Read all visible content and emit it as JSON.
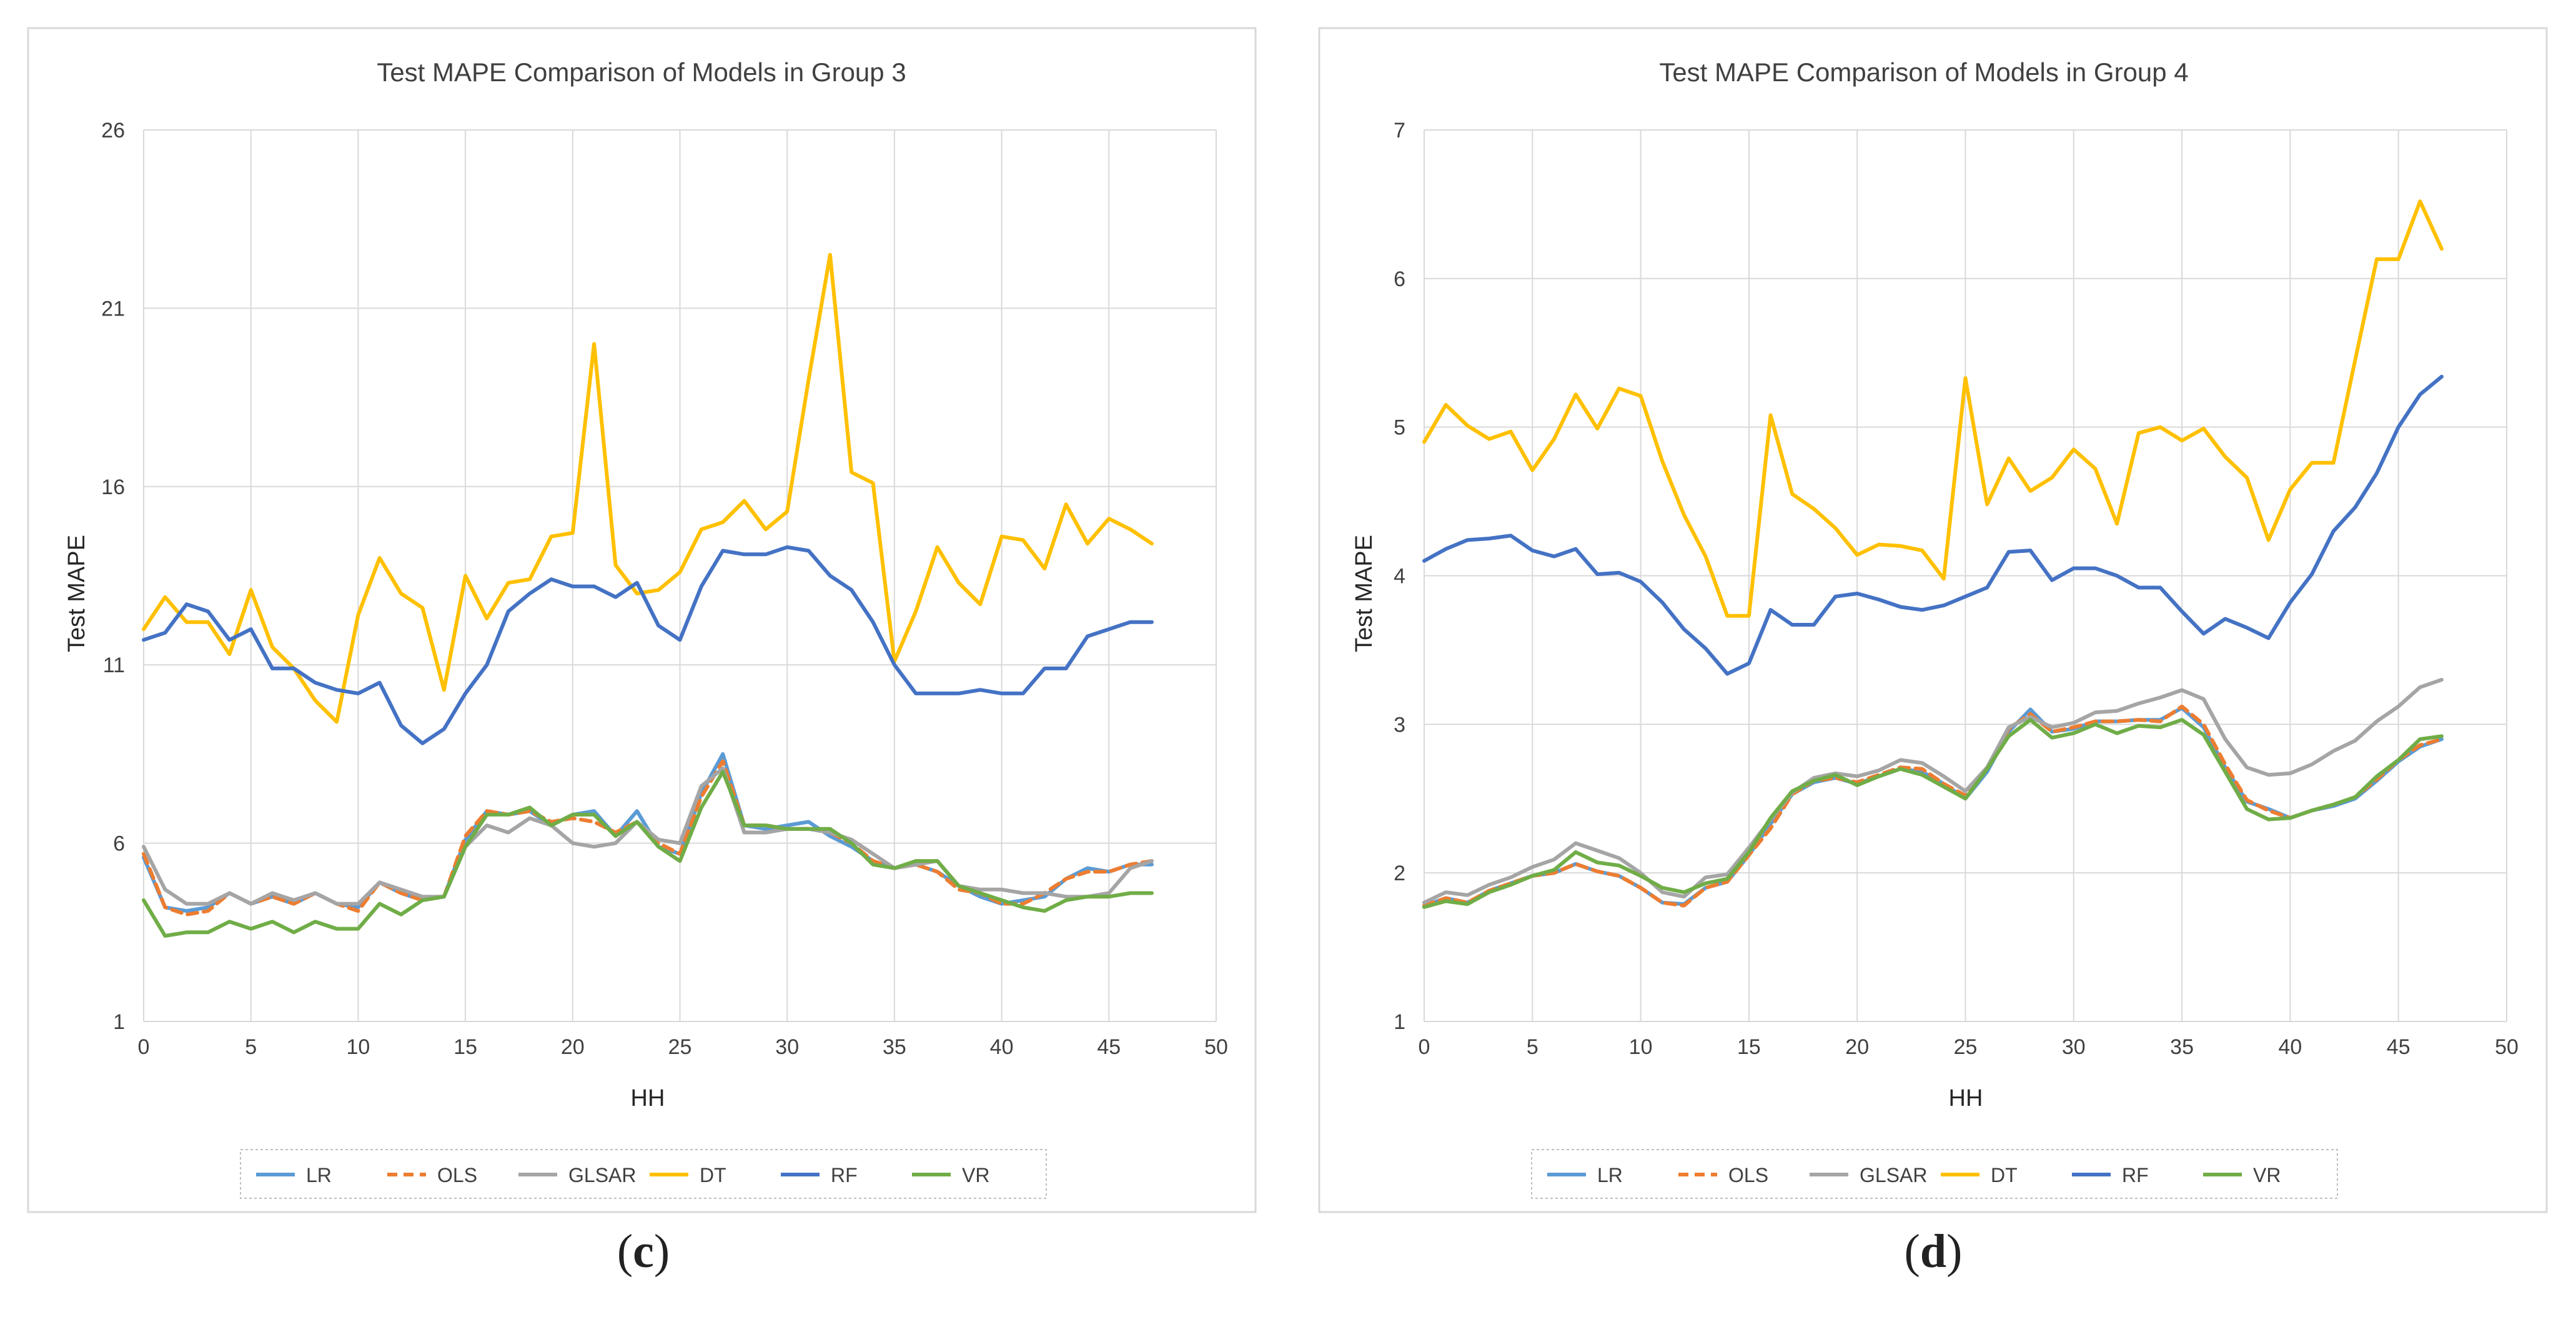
{
  "chart_data": [
    {
      "type": "line",
      "panel_label": "c",
      "title": "Test MAPE Comparison of Models in Group 3",
      "xlabel": "HH",
      "ylabel": "Test MAPE",
      "xlim": [
        0,
        50
      ],
      "ylim": [
        1,
        26
      ],
      "x_ticks": [
        0,
        5,
        10,
        15,
        20,
        25,
        30,
        35,
        40,
        45,
        50
      ],
      "y_ticks": [
        1,
        6,
        11,
        16,
        21,
        26
      ],
      "grid": "vertical and horizontal",
      "legend_position": "bottom",
      "x": [
        0,
        1,
        2,
        3,
        4,
        5,
        6,
        7,
        8,
        9,
        10,
        11,
        12,
        13,
        14,
        15,
        16,
        17,
        18,
        19,
        20,
        21,
        22,
        23,
        24,
        25,
        26,
        27,
        28,
        29,
        30,
        31,
        32,
        33,
        34,
        35,
        36,
        37,
        38,
        39,
        40,
        41,
        42,
        43,
        44,
        45,
        46,
        47
      ],
      "series": [
        {
          "name": "LR",
          "color": "#5B9BD5",
          "dash": "solid",
          "values": [
            5.6,
            4.2,
            4.1,
            4.2,
            4.6,
            4.3,
            4.5,
            4.3,
            4.6,
            4.3,
            4.2,
            4.9,
            4.6,
            4.4,
            4.5,
            6.1,
            6.9,
            6.8,
            6.9,
            6.5,
            6.8,
            6.9,
            6.2,
            6.9,
            5.9,
            5.7,
            7.4,
            8.5,
            6.5,
            6.4,
            6.5,
            6.6,
            6.2,
            5.9,
            5.5,
            5.3,
            5.4,
            5.2,
            4.8,
            4.5,
            4.3,
            4.4,
            4.5,
            5.0,
            5.3,
            5.2,
            5.4,
            5.4
          ]
        },
        {
          "name": "OLS",
          "color": "#ED7D31",
          "dash": "dashed",
          "values": [
            5.7,
            4.2,
            4.0,
            4.1,
            4.6,
            4.3,
            4.5,
            4.3,
            4.6,
            4.3,
            4.1,
            4.9,
            4.6,
            4.4,
            4.5,
            6.2,
            6.9,
            6.8,
            6.9,
            6.6,
            6.7,
            6.6,
            6.3,
            6.6,
            6.0,
            5.7,
            7.3,
            8.3,
            6.5,
            6.5,
            6.4,
            6.4,
            6.3,
            6.0,
            5.5,
            5.3,
            5.4,
            5.2,
            4.7,
            4.6,
            4.3,
            4.3,
            4.6,
            5.0,
            5.2,
            5.2,
            5.4,
            5.5
          ]
        },
        {
          "name": "GLSAR",
          "color": "#A5A5A5",
          "dash": "solid",
          "values": [
            5.9,
            4.7,
            4.3,
            4.3,
            4.6,
            4.3,
            4.6,
            4.4,
            4.6,
            4.3,
            4.3,
            4.9,
            4.7,
            4.5,
            4.5,
            5.9,
            6.5,
            6.3,
            6.7,
            6.5,
            6.0,
            5.9,
            6.0,
            6.6,
            6.1,
            6.0,
            7.6,
            8.1,
            6.3,
            6.3,
            6.4,
            6.4,
            6.3,
            6.1,
            5.7,
            5.3,
            5.4,
            5.5,
            4.8,
            4.7,
            4.7,
            4.6,
            4.6,
            4.5,
            4.5,
            4.6,
            5.3,
            5.5
          ]
        },
        {
          "name": "DT",
          "color": "#FFC000",
          "dash": "solid",
          "values": [
            12.0,
            12.9,
            12.2,
            12.2,
            11.3,
            13.1,
            11.5,
            10.9,
            10.0,
            9.4,
            12.4,
            14.0,
            13.0,
            12.6,
            10.3,
            13.5,
            12.3,
            13.3,
            13.4,
            14.6,
            14.7,
            20.0,
            13.8,
            13.0,
            13.1,
            13.6,
            14.8,
            15.0,
            15.6,
            14.8,
            15.3,
            19.0,
            22.5,
            16.4,
            16.1,
            11.1,
            12.5,
            14.3,
            13.3,
            12.7,
            14.6,
            14.5,
            13.7,
            15.5,
            14.4,
            15.1,
            14.8,
            14.4
          ]
        },
        {
          "name": "RF",
          "color": "#4472C4",
          "dash": "solid",
          "values": [
            11.7,
            11.9,
            12.7,
            12.5,
            11.7,
            12.0,
            10.9,
            10.9,
            10.5,
            10.3,
            10.2,
            10.5,
            9.3,
            8.8,
            9.2,
            10.2,
            11.0,
            12.5,
            13.0,
            13.4,
            13.2,
            13.2,
            12.9,
            13.3,
            12.1,
            11.7,
            13.2,
            14.2,
            14.1,
            14.1,
            14.3,
            14.2,
            13.5,
            13.1,
            12.2,
            11.0,
            10.2,
            10.2,
            10.2,
            10.3,
            10.2,
            10.2,
            10.9,
            10.9,
            11.8,
            12.0,
            12.2,
            12.2
          ]
        },
        {
          "name": "VR",
          "color": "#70AD47",
          "dash": "solid",
          "values": [
            4.4,
            3.4,
            3.5,
            3.5,
            3.8,
            3.6,
            3.8,
            3.5,
            3.8,
            3.6,
            3.6,
            4.3,
            4.0,
            4.4,
            4.5,
            5.9,
            6.8,
            6.8,
            7.0,
            6.5,
            6.8,
            6.8,
            6.2,
            6.6,
            5.9,
            5.5,
            7.0,
            8.0,
            6.5,
            6.5,
            6.4,
            6.4,
            6.4,
            6.0,
            5.4,
            5.3,
            5.5,
            5.5,
            4.8,
            4.6,
            4.4,
            4.2,
            4.1,
            4.4,
            4.5,
            4.5,
            4.6,
            4.6
          ]
        }
      ]
    },
    {
      "type": "line",
      "panel_label": "d",
      "title": "Test MAPE Comparison of Models in Group 4",
      "xlabel": "HH",
      "ylabel": "Test MAPE",
      "xlim": [
        0,
        50
      ],
      "ylim": [
        1,
        7
      ],
      "x_ticks": [
        0,
        5,
        10,
        15,
        20,
        25,
        30,
        35,
        40,
        45,
        50
      ],
      "y_ticks": [
        1,
        2,
        3,
        4,
        5,
        6,
        7
      ],
      "grid": "vertical and horizontal",
      "legend_position": "bottom",
      "x": [
        0,
        1,
        2,
        3,
        4,
        5,
        6,
        7,
        8,
        9,
        10,
        11,
        12,
        13,
        14,
        15,
        16,
        17,
        18,
        19,
        20,
        21,
        22,
        23,
        24,
        25,
        26,
        27,
        28,
        29,
        30,
        31,
        32,
        33,
        34,
        35,
        36,
        37,
        38,
        39,
        40,
        41,
        42,
        43,
        44,
        45,
        46,
        47
      ],
      "series": [
        {
          "name": "LR",
          "color": "#5B9BD5",
          "dash": "solid",
          "values": [
            1.78,
            1.83,
            1.8,
            1.88,
            1.93,
            1.98,
            2.0,
            2.06,
            2.01,
            1.98,
            1.9,
            1.8,
            1.79,
            1.9,
            1.94,
            2.12,
            2.33,
            2.53,
            2.61,
            2.64,
            2.6,
            2.65,
            2.7,
            2.68,
            2.6,
            2.5,
            2.68,
            2.95,
            3.1,
            2.95,
            2.97,
            3.02,
            3.02,
            3.03,
            3.03,
            3.11,
            2.98,
            2.71,
            2.48,
            2.43,
            2.37,
            2.42,
            2.45,
            2.5,
            2.62,
            2.75,
            2.85,
            2.9
          ]
        },
        {
          "name": "OLS",
          "color": "#ED7D31",
          "dash": "dashed",
          "values": [
            1.78,
            1.83,
            1.8,
            1.88,
            1.93,
            1.98,
            2.0,
            2.06,
            2.01,
            1.98,
            1.9,
            1.8,
            1.78,
            1.9,
            1.94,
            2.12,
            2.3,
            2.53,
            2.62,
            2.64,
            2.61,
            2.66,
            2.71,
            2.7,
            2.6,
            2.52,
            2.7,
            2.97,
            3.07,
            2.95,
            2.98,
            3.02,
            3.02,
            3.03,
            3.02,
            3.12,
            3.0,
            2.73,
            2.49,
            2.42,
            2.37,
            2.42,
            2.46,
            2.51,
            2.63,
            2.76,
            2.86,
            2.9
          ]
        },
        {
          "name": "GLSAR",
          "color": "#A5A5A5",
          "dash": "solid",
          "values": [
            1.8,
            1.87,
            1.85,
            1.92,
            1.97,
            2.04,
            2.09,
            2.2,
            2.15,
            2.1,
            2.0,
            1.87,
            1.84,
            1.97,
            1.99,
            2.17,
            2.36,
            2.54,
            2.64,
            2.67,
            2.65,
            2.69,
            2.76,
            2.74,
            2.65,
            2.55,
            2.71,
            2.98,
            3.05,
            2.98,
            3.01,
            3.08,
            3.09,
            3.14,
            3.18,
            3.23,
            3.17,
            2.9,
            2.71,
            2.66,
            2.67,
            2.73,
            2.82,
            2.89,
            3.02,
            3.12,
            3.25,
            3.3
          ]
        },
        {
          "name": "DT",
          "color": "#FFC000",
          "dash": "solid",
          "values": [
            4.9,
            5.15,
            5.01,
            4.92,
            4.97,
            4.71,
            4.92,
            5.22,
            4.99,
            5.26,
            5.21,
            4.77,
            4.41,
            4.13,
            3.73,
            3.73,
            5.08,
            4.55,
            4.45,
            4.32,
            4.14,
            4.21,
            4.2,
            4.17,
            3.98,
            5.33,
            4.48,
            4.79,
            4.57,
            4.66,
            4.85,
            4.72,
            4.35,
            4.96,
            5.0,
            4.91,
            4.99,
            4.8,
            4.66,
            4.24,
            4.58,
            4.76,
            4.76,
            5.45,
            6.13,
            6.13,
            6.52,
            6.2
          ]
        },
        {
          "name": "RF",
          "color": "#4472C4",
          "dash": "solid",
          "values": [
            4.1,
            4.18,
            4.24,
            4.25,
            4.27,
            4.17,
            4.13,
            4.18,
            4.01,
            4.02,
            3.96,
            3.82,
            3.64,
            3.51,
            3.34,
            3.41,
            3.77,
            3.67,
            3.67,
            3.86,
            3.88,
            3.84,
            3.79,
            3.77,
            3.8,
            3.86,
            3.92,
            4.16,
            4.17,
            3.97,
            4.05,
            4.05,
            4.0,
            3.92,
            3.92,
            3.76,
            3.61,
            3.71,
            3.65,
            3.58,
            3.82,
            4.01,
            4.3,
            4.46,
            4.69,
            5.0,
            5.22,
            5.34
          ]
        },
        {
          "name": "VR",
          "color": "#70AD47",
          "dash": "solid",
          "values": [
            1.77,
            1.81,
            1.79,
            1.87,
            1.92,
            1.98,
            2.02,
            2.14,
            2.07,
            2.05,
            1.98,
            1.9,
            1.87,
            1.93,
            1.96,
            2.14,
            2.37,
            2.55,
            2.62,
            2.66,
            2.59,
            2.65,
            2.7,
            2.66,
            2.58,
            2.5,
            2.7,
            2.92,
            3.03,
            2.91,
            2.94,
            3.0,
            2.94,
            2.99,
            2.98,
            3.03,
            2.93,
            2.68,
            2.43,
            2.36,
            2.37,
            2.42,
            2.46,
            2.51,
            2.65,
            2.76,
            2.9,
            2.92
          ]
        }
      ]
    }
  ]
}
